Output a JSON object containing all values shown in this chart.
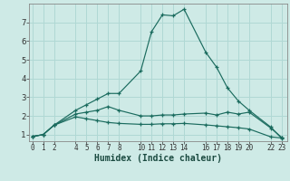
{
  "xlabel": "Humidex (Indice chaleur)",
  "background_color": "#ceeae6",
  "grid_color": "#b0d8d4",
  "line_color": "#1a6b5e",
  "x_ticks": [
    0,
    1,
    2,
    4,
    5,
    6,
    7,
    8,
    10,
    11,
    12,
    13,
    14,
    16,
    17,
    18,
    19,
    20,
    22,
    23
  ],
  "ylim": [
    0.65,
    8.0
  ],
  "xlim": [
    -0.3,
    23.5
  ],
  "series": [
    {
      "x": [
        0,
        1,
        2,
        4,
        5,
        6,
        7,
        8,
        10,
        11,
        12,
        13,
        14,
        16,
        17,
        18,
        19,
        20,
        22,
        23
      ],
      "y": [
        0.9,
        1.0,
        1.5,
        2.3,
        2.6,
        2.9,
        3.2,
        3.2,
        4.4,
        6.5,
        7.4,
        7.35,
        7.7,
        5.4,
        4.6,
        3.5,
        2.8,
        2.3,
        1.4,
        0.8
      ]
    },
    {
      "x": [
        0,
        1,
        2,
        4,
        5,
        6,
        7,
        8,
        10,
        11,
        12,
        13,
        14,
        16,
        17,
        18,
        19,
        20,
        22,
        23
      ],
      "y": [
        0.9,
        1.0,
        1.5,
        2.1,
        2.2,
        2.3,
        2.5,
        2.3,
        2.0,
        2.0,
        2.05,
        2.05,
        2.1,
        2.15,
        2.05,
        2.2,
        2.1,
        2.2,
        1.35,
        0.85
      ]
    },
    {
      "x": [
        0,
        1,
        2,
        4,
        5,
        6,
        7,
        8,
        10,
        11,
        12,
        13,
        14,
        16,
        17,
        18,
        19,
        20,
        22,
        23
      ],
      "y": [
        0.9,
        1.0,
        1.5,
        1.95,
        1.85,
        1.75,
        1.65,
        1.6,
        1.55,
        1.55,
        1.58,
        1.58,
        1.6,
        1.52,
        1.47,
        1.42,
        1.37,
        1.3,
        0.88,
        0.82
      ]
    }
  ]
}
